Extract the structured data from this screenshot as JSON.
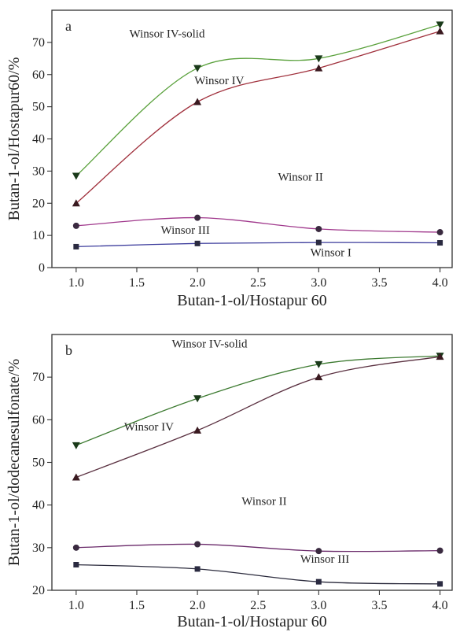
{
  "chart_data": [
    {
      "type": "line",
      "panel_label": "a",
      "xlabel": "Butan-1-ol/Hostapur 60",
      "ylabel": "Butan-1-ol/Hostapur60/%",
      "xlim": [
        0.8,
        4.1
      ],
      "ylim": [
        0,
        80
      ],
      "xticks": [
        1.0,
        1.5,
        2.0,
        2.5,
        3.0,
        3.5,
        4.0
      ],
      "xtick_labels": [
        "1.0",
        "1.5",
        "2.0",
        "2.5",
        "3.0",
        "3.5",
        "4.0"
      ],
      "yticks": [
        0,
        10,
        20,
        30,
        40,
        50,
        60,
        70
      ],
      "ytick_labels": [
        "0",
        "10",
        "20",
        "30",
        "40",
        "50",
        "60",
        "70"
      ],
      "grid": false,
      "x": [
        1.0,
        2.0,
        3.0,
        4.0
      ],
      "series": [
        {
          "values": [
            28.5,
            62,
            65,
            75.5
          ],
          "color": "#5aa13c",
          "marker": "triangle-down"
        },
        {
          "values": [
            20,
            51.5,
            62,
            73.5
          ],
          "color": "#a0303c",
          "marker": "triangle-up"
        },
        {
          "values": [
            13,
            15.5,
            12,
            11
          ],
          "color": "#a0388c",
          "marker": "circle"
        },
        {
          "values": [
            6.5,
            7.5,
            7.8,
            7.7
          ],
          "color": "#3c3c9c",
          "marker": "square"
        }
      ],
      "annotations": [
        {
          "text": "Winsor IV-solid",
          "x": 1.75,
          "y": 71.5
        },
        {
          "text": "Winsor IV",
          "x": 2.18,
          "y": 57
        },
        {
          "text": "Winsor II",
          "x": 2.85,
          "y": 27
        },
        {
          "text": "Winsor III",
          "x": 1.9,
          "y": 10.5
        },
        {
          "text": "Winsor I",
          "x": 3.1,
          "y": 3.5
        }
      ]
    },
    {
      "type": "line",
      "panel_label": "b",
      "xlabel": "Butan-1-ol/Hostapur 60",
      "ylabel": "Butan-1-ol/dodecanesulfonate/%",
      "xlim": [
        0.8,
        4.1
      ],
      "ylim": [
        20,
        80
      ],
      "xticks": [
        1.0,
        1.5,
        2.0,
        2.5,
        3.0,
        3.5,
        4.0
      ],
      "xtick_labels": [
        "1.0",
        "1.5",
        "2.0",
        "2.5",
        "3.0",
        "3.5",
        "4.0"
      ],
      "yticks": [
        20,
        30,
        40,
        50,
        60,
        70
      ],
      "ytick_labels": [
        "20",
        "30",
        "40",
        "50",
        "60",
        "70"
      ],
      "grid": false,
      "x": [
        1.0,
        2.0,
        3.0,
        4.0
      ],
      "series": [
        {
          "values": [
            54,
            65,
            73,
            75
          ],
          "color": "#3c7a30",
          "marker": "triangle-down"
        },
        {
          "values": [
            46.5,
            57.5,
            70,
            74.8
          ],
          "color": "#5a3040",
          "marker": "triangle-up"
        },
        {
          "values": [
            30,
            30.8,
            29.2,
            29.3
          ],
          "color": "#6a2a6a",
          "marker": "circle"
        },
        {
          "values": [
            26,
            25,
            22,
            21.5
          ],
          "color": "#2a2a3c",
          "marker": "square"
        }
      ],
      "annotations": [
        {
          "text": "Winsor IV-solid",
          "x": 2.1,
          "y": 77
        },
        {
          "text": "Winsor IV",
          "x": 1.6,
          "y": 57.5
        },
        {
          "text": "Winsor II",
          "x": 2.55,
          "y": 40
        },
        {
          "text": "Winsor III",
          "x": 3.05,
          "y": 26.5
        }
      ]
    }
  ]
}
